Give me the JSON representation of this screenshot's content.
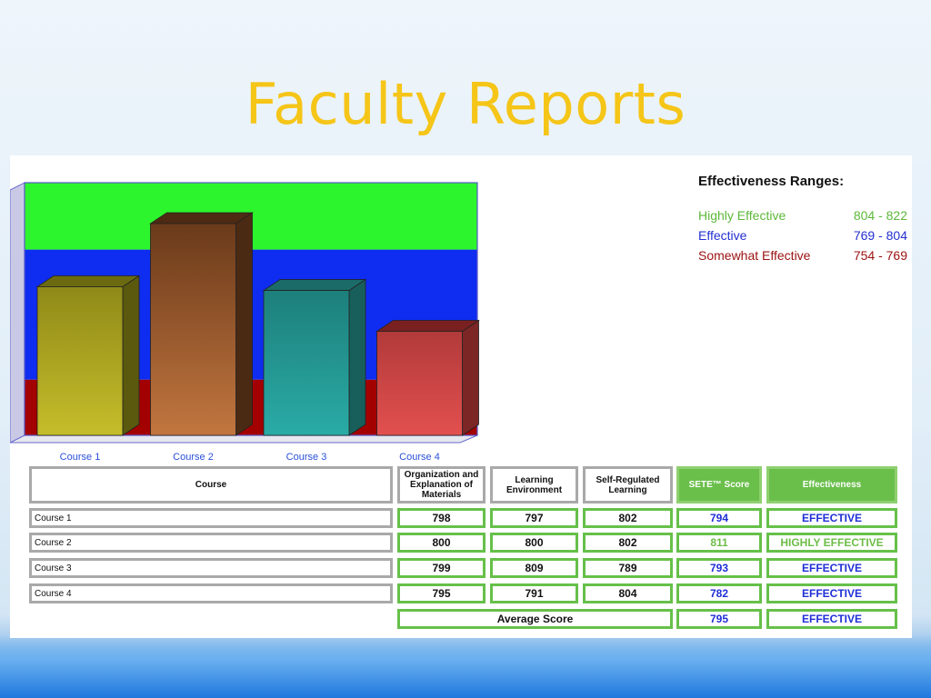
{
  "title": "Faculty Reports",
  "legend": {
    "title": "Effectiveness Ranges:",
    "items": [
      {
        "label": "Highly Effective",
        "range": "804 - 822",
        "color": "#5db83a"
      },
      {
        "label": "Effective",
        "range": "769 - 804",
        "color": "#2430d0"
      },
      {
        "label": "Somewhat Effective",
        "range": "754 - 769",
        "color": "#9b1010"
      }
    ]
  },
  "chart_data": {
    "type": "bar",
    "categories": [
      "Course 1",
      "Course 2",
      "Course 3",
      "Course 4"
    ],
    "values": [
      794,
      811,
      793,
      782
    ],
    "ylim": [
      754,
      822
    ],
    "bands": [
      {
        "from": 754,
        "to": 769,
        "color": "#a30000"
      },
      {
        "from": 769,
        "to": 804,
        "color": "#0f2df0"
      },
      {
        "from": 804,
        "to": 822,
        "color": "#2df52d"
      }
    ],
    "bar_colors": [
      {
        "face": "#c6bd2a",
        "top": "#6b6a10",
        "side": "#5b590e",
        "dark": "#8f8a18"
      },
      {
        "face": "#c2763f",
        "top": "#4e2a12",
        "side": "#4b2a13",
        "dark": "#6a3a1a"
      },
      {
        "face": "#2aaba6",
        "top": "#1b6b68",
        "side": "#185f5c",
        "dark": "#1d7f7b"
      },
      {
        "face": "#e2504f",
        "top": "#7a2020",
        "side": "#7d2626",
        "dark": "#b23a3a"
      }
    ]
  },
  "table": {
    "headers": [
      "Course",
      "Organization and Explanation of Materials",
      "Learning Environment",
      "Self-Regulated Learning",
      "SETE™ Score",
      "Effectiveness"
    ],
    "rows": [
      {
        "course": "Course 1",
        "org": "798",
        "env": "797",
        "srl": "802",
        "score": "794",
        "eff": "EFFECTIVE",
        "tier": "effective"
      },
      {
        "course": "Course 2",
        "org": "800",
        "env": "800",
        "srl": "802",
        "score": "811",
        "eff": "HIGHLY EFFECTIVE",
        "tier": "highly"
      },
      {
        "course": "Course 3",
        "org": "799",
        "env": "809",
        "srl": "789",
        "score": "793",
        "eff": "EFFECTIVE",
        "tier": "effective"
      },
      {
        "course": "Course 4",
        "org": "795",
        "env": "791",
        "srl": "804",
        "score": "782",
        "eff": "EFFECTIVE",
        "tier": "effective"
      }
    ],
    "average": {
      "label": "Average Score",
      "score": "795",
      "eff": "EFFECTIVE"
    }
  }
}
